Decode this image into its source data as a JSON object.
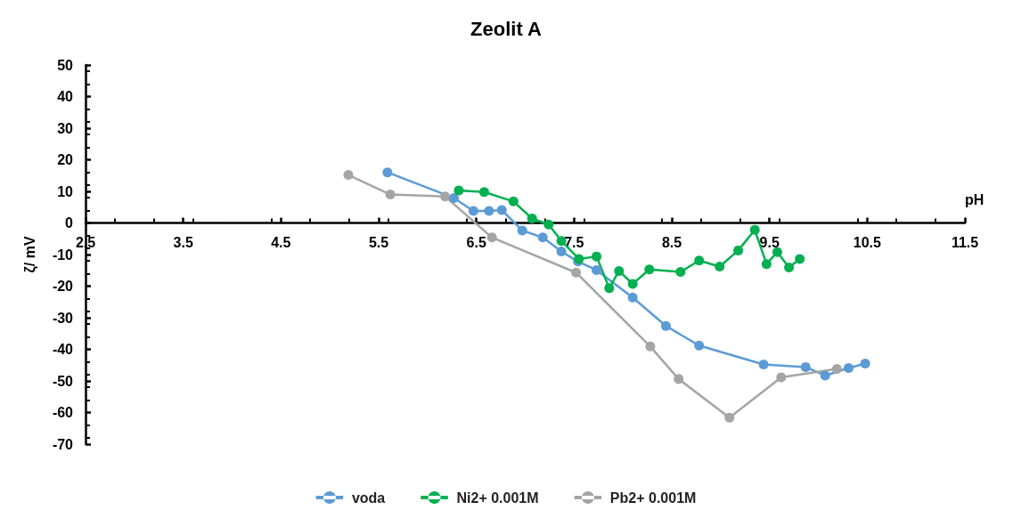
{
  "chart_data": {
    "type": "line",
    "title": "Zeolit A",
    "xlabel": "pH",
    "ylabel": "ζ/ mV",
    "xlim": [
      2.5,
      11.5
    ],
    "xticks": [
      2.5,
      3.5,
      4.5,
      5.5,
      6.5,
      7.5,
      8.5,
      9.5,
      10.5,
      11.5
    ],
    "ylim": [
      -70,
      50
    ],
    "yticks": [
      -70,
      -60,
      -50,
      -40,
      -30,
      -20,
      -10,
      0,
      10,
      20,
      30,
      40,
      50
    ],
    "legend": "bottom",
    "marker": "circle",
    "line_style": "solid",
    "series": [
      {
        "name": "voda",
        "color": "#5b9bd5",
        "x": [
          5.59,
          6.27,
          6.47,
          6.63,
          6.76,
          6.97,
          7.18,
          7.37,
          7.54,
          7.73,
          8.1,
          8.44,
          8.78,
          9.44,
          9.87,
          10.07,
          10.31,
          10.48
        ],
        "values": [
          16,
          7.9,
          3.8,
          3.8,
          4.1,
          -2.4,
          -4.6,
          -9,
          -12.2,
          -14.9,
          -23.6,
          -32.6,
          -38.8,
          -44.8,
          -45.6,
          -48.3,
          -45.9,
          -44.5
        ]
      },
      {
        "name": "Ni2+ 0.001M",
        "color": "#00b050",
        "x": [
          6.32,
          6.58,
          6.88,
          7.07,
          7.24,
          7.37,
          7.55,
          7.73,
          7.86,
          7.96,
          8.1,
          8.27,
          8.59,
          8.78,
          8.99,
          9.18,
          9.35,
          9.47,
          9.58,
          9.7,
          9.81
        ],
        "values": [
          10.3,
          9.8,
          6.8,
          1.4,
          -0.5,
          -5.7,
          -11.4,
          -10.6,
          -20.6,
          -15.2,
          -19.3,
          -14.7,
          -15.5,
          -11.9,
          -13.8,
          -8.7,
          -2.2,
          -13,
          -9.2,
          -14.1,
          -11.4
        ]
      },
      {
        "name": "Pb2+ 0.001M",
        "color": "#a5a5a5",
        "x": [
          5.19,
          5.62,
          6.18,
          6.66,
          7.52,
          8.28,
          8.57,
          9.09,
          9.62,
          10.19
        ],
        "values": [
          15.2,
          9,
          8.4,
          -4.6,
          -15.7,
          -39.1,
          -49.4,
          -61.6,
          -48.9,
          -46.2
        ]
      }
    ]
  }
}
